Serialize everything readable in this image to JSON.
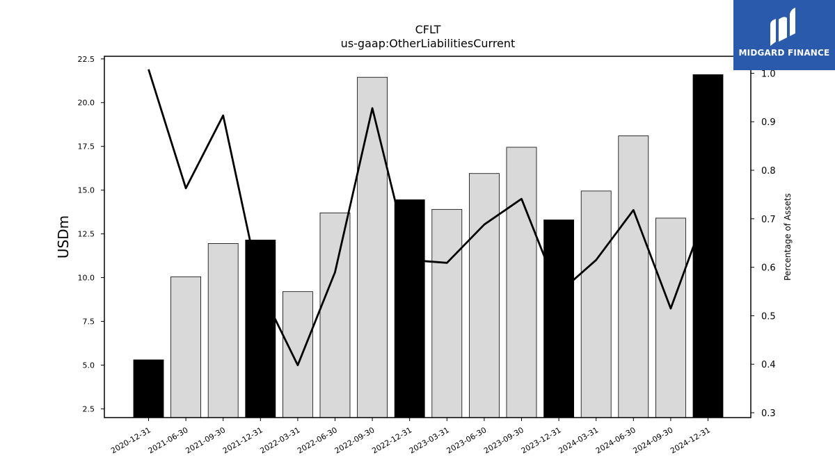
{
  "chart_data": {
    "type": "bar",
    "title": "CFLT",
    "subtitle": "us-gaap:OtherLiabilitiesCurrent",
    "ylabel": "USDm",
    "y2label": "Percentage of Assets",
    "categories": [
      "2020-12-31",
      "2021-06-30",
      "2021-09-30",
      "2021-12-31",
      "2022-03-31",
      "2022-06-30",
      "2022-09-30",
      "2022-12-31",
      "2023-03-31",
      "2023-06-30",
      "2023-09-30",
      "2023-12-31",
      "2024-03-31",
      "2024-06-30",
      "2024-09-30",
      "2024-12-31"
    ],
    "series": [
      {
        "axis": "left",
        "kind": "bar",
        "values": [
          5.3,
          10.05,
          11.95,
          12.15,
          9.2,
          13.7,
          21.45,
          14.45,
          13.9,
          15.95,
          17.45,
          13.3,
          14.95,
          18.1,
          13.4,
          21.6
        ],
        "annual": [
          true,
          false,
          false,
          true,
          false,
          false,
          false,
          true,
          false,
          false,
          false,
          true,
          false,
          false,
          false,
          true
        ]
      },
      {
        "axis": "right",
        "kind": "line",
        "values": [
          1.008,
          0.763,
          0.913,
          0.555,
          0.398,
          0.59,
          0.928,
          0.615,
          0.609,
          0.688,
          0.741,
          0.547,
          0.615,
          0.718,
          0.515,
          0.725
        ]
      }
    ],
    "ylim": [
      2.0,
      22.65
    ],
    "y2lim": [
      0.29,
      1.035
    ],
    "yticks": [
      "2.5",
      "5.0",
      "7.5",
      "10.0",
      "12.5",
      "15.0",
      "17.5",
      "20.0",
      "22.5"
    ],
    "y2ticks": [
      "0.3",
      "0.4",
      "0.5",
      "0.6",
      "0.7",
      "0.8",
      "0.9",
      "1.0"
    ],
    "grid": false,
    "colors": {
      "annual_bar": "#000000",
      "quarter_bar": "#d9d9d9",
      "line": "#000000"
    }
  },
  "logo": {
    "text": "MIDGARD FINANCE",
    "color": "#2a5aab"
  }
}
